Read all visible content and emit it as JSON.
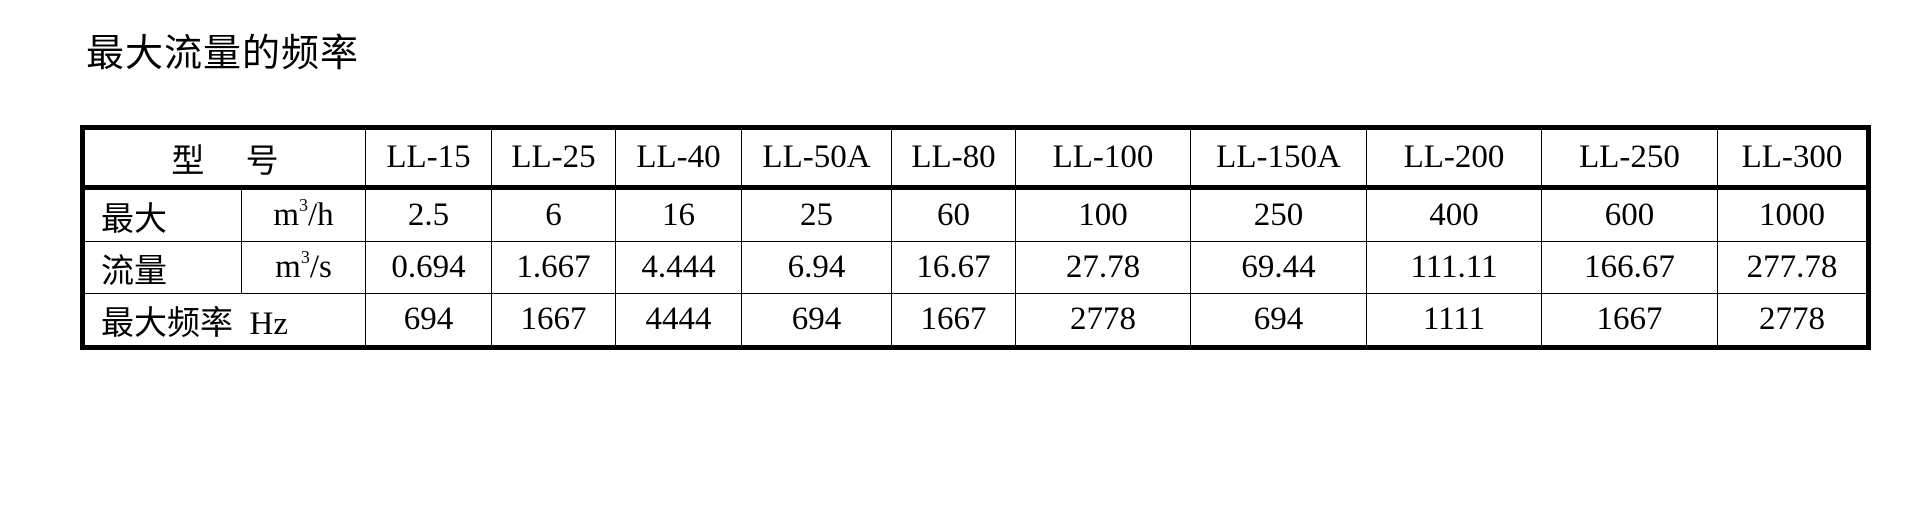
{
  "title": "最大流量的频率",
  "table": {
    "header_label": "型　 号",
    "models": [
      "LL-15",
      "LL-25",
      "LL-40",
      "LL-50A",
      "LL-80",
      "LL-100",
      "LL-150A",
      "LL-200",
      "LL-250",
      "LL-300"
    ],
    "rows": [
      {
        "label": "最大",
        "unit_base": "m",
        "unit_sup": "3",
        "unit_tail": "/h",
        "values": [
          "2.5",
          "6",
          "16",
          "25",
          "60",
          "100",
          "250",
          "400",
          "600",
          "1000"
        ]
      },
      {
        "label": "流量",
        "unit_base": "m",
        "unit_sup": "3",
        "unit_tail": "/s",
        "values": [
          "0.694",
          "1.667",
          "4.444",
          "6.94",
          "16.67",
          "27.78",
          "69.44",
          "111.11",
          "166.67",
          "277.78"
        ]
      },
      {
        "label": "最大频率",
        "unit": "Hz",
        "values": [
          "694",
          "1667",
          "4444",
          "694",
          "1667",
          "2778",
          "694",
          "1111",
          "1667",
          "2778"
        ]
      }
    ]
  }
}
